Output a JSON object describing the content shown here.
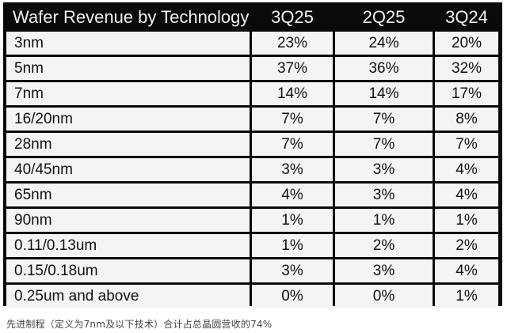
{
  "table": {
    "title": "Wafer Revenue by Technology",
    "columns": [
      "3Q25",
      "2Q25",
      "3Q24"
    ],
    "rows": [
      {
        "tech": "3nm",
        "values": [
          "23%",
          "24%",
          "20%"
        ]
      },
      {
        "tech": "5nm",
        "values": [
          "37%",
          "36%",
          "32%"
        ]
      },
      {
        "tech": "7nm",
        "values": [
          "14%",
          "14%",
          "17%"
        ]
      },
      {
        "tech": "16/20nm",
        "values": [
          "7%",
          "7%",
          "8%"
        ]
      },
      {
        "tech": "28nm",
        "values": [
          "7%",
          "7%",
          "7%"
        ]
      },
      {
        "tech": "40/45nm",
        "values": [
          "3%",
          "3%",
          "4%"
        ]
      },
      {
        "tech": "65nm",
        "values": [
          "4%",
          "3%",
          "4%"
        ]
      },
      {
        "tech": "90nm",
        "values": [
          "1%",
          "1%",
          "1%"
        ]
      },
      {
        "tech": "0.11/0.13um",
        "values": [
          "1%",
          "2%",
          "2%"
        ]
      },
      {
        "tech": "0.15/0.18um",
        "values": [
          "3%",
          "3%",
          "4%"
        ]
      },
      {
        "tech": "0.25um and above",
        "values": [
          "0%",
          "0%",
          "1%"
        ]
      }
    ]
  },
  "caption": "先进制程（定义为7nm及以下技术）合计占总晶圆营收的74%",
  "colors": {
    "frame": "#0a0a0a",
    "cell_background": "#f4f4f4",
    "header_text": "#f2f2f2"
  }
}
